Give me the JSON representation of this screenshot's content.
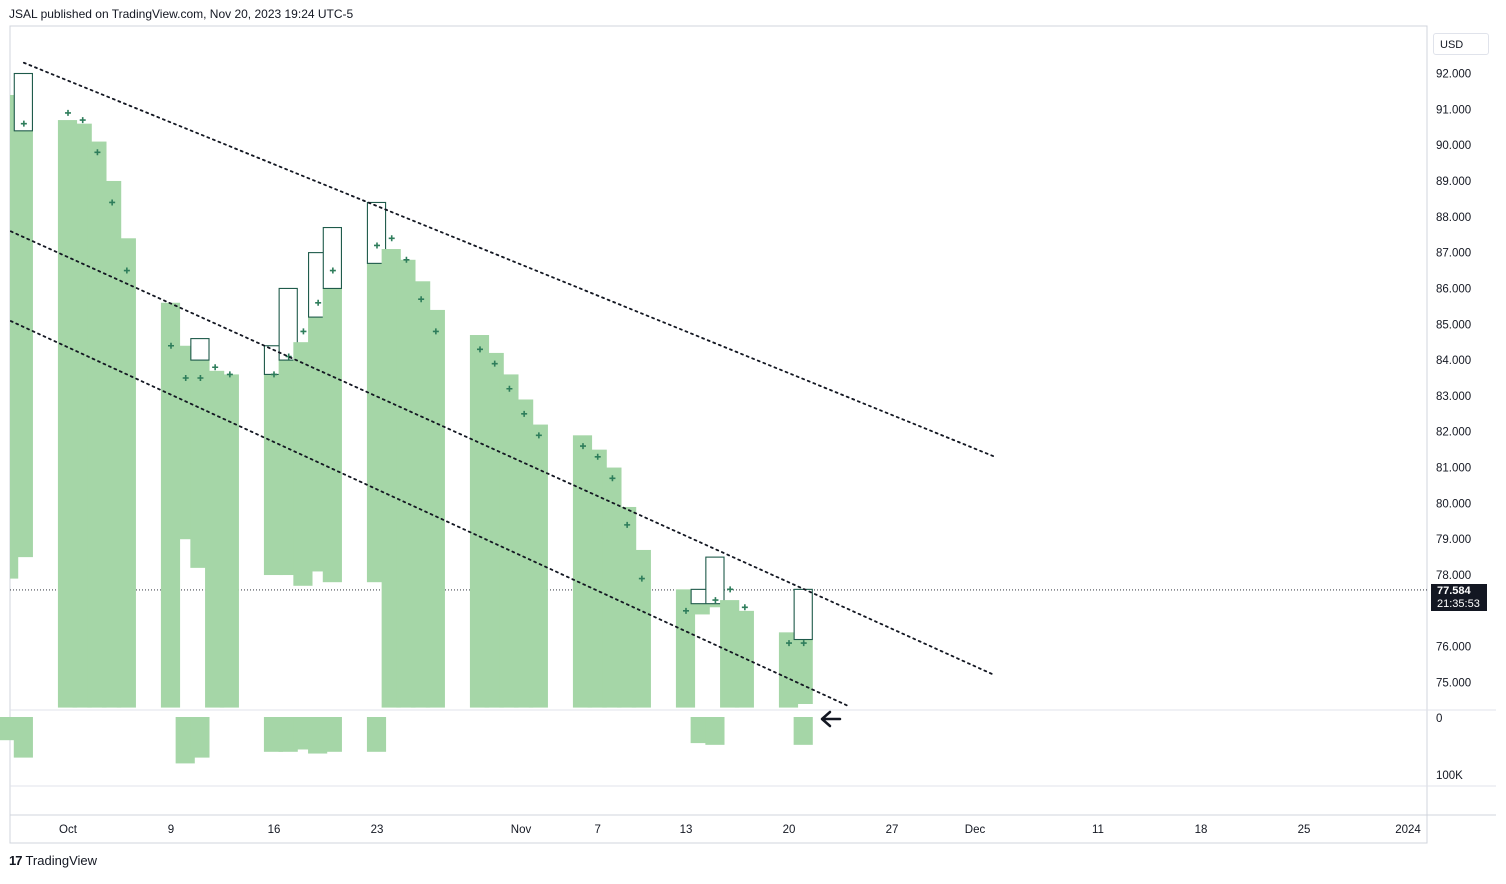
{
  "header": {
    "publisher_text": "JSAL published on TradingView.com, Nov 20, 2023 19:24 UTC-5"
  },
  "footer": {
    "brand": "TradingView",
    "logo_icon": "tradingview-logo-icon"
  },
  "price_axis": {
    "currency": "USD",
    "labels": [
      "92.000",
      "91.000",
      "90.000",
      "89.000",
      "88.000",
      "87.000",
      "86.000",
      "85.000",
      "84.000",
      "83.000",
      "82.000",
      "81.000",
      "80.000",
      "79.000",
      "78.000",
      "76.000",
      "75.000"
    ],
    "last_price": "77.584",
    "countdown": "21:35:53",
    "volume_labels": [
      "0",
      "100K"
    ]
  },
  "colors": {
    "body_fill": "#a5d6a7",
    "candle_outline": "#1e5a4a",
    "marker": "#2e7d5b",
    "trendline": "#131722",
    "grid": "#e0e3eb"
  },
  "chart_data": {
    "type": "bar",
    "x_ticks": [
      "Oct",
      "9",
      "16",
      "23",
      "Nov",
      "7",
      "13",
      "20",
      "27",
      "Dec",
      "11",
      "18",
      "25",
      "2024"
    ],
    "y_range": [
      74.3,
      92.9
    ],
    "bars": [
      {
        "date": "2023-09-28",
        "low": 77.9,
        "high": 91.4,
        "oc_low": null,
        "oc_high": null,
        "marker": null
      },
      {
        "date": "2023-09-29",
        "low": 78.5,
        "high": 90.4,
        "oc_low": 90.4,
        "oc_high": 92.0,
        "marker": 90.6
      },
      {
        "date": "2023-10-02",
        "low": 74.3,
        "high": 90.7,
        "oc_low": null,
        "oc_high": null,
        "marker": 90.9
      },
      {
        "date": "2023-10-03",
        "low": 74.3,
        "high": 90.6,
        "oc_low": null,
        "oc_high": null,
        "marker": 90.7
      },
      {
        "date": "2023-10-04",
        "low": 74.3,
        "high": 90.1,
        "oc_low": null,
        "oc_high": null,
        "marker": 89.8
      },
      {
        "date": "2023-10-05",
        "low": 74.3,
        "high": 89.0,
        "oc_low": null,
        "oc_high": null,
        "marker": 88.4
      },
      {
        "date": "2023-10-06",
        "low": 74.3,
        "high": 87.4,
        "oc_low": null,
        "oc_high": null,
        "marker": 86.5
      },
      {
        "date": "2023-10-09",
        "low": 74.3,
        "high": 85.6,
        "oc_low": null,
        "oc_high": null,
        "marker": 84.4
      },
      {
        "date": "2023-10-10",
        "low": 79.0,
        "high": 84.4,
        "oc_low": null,
        "oc_high": null,
        "marker": 83.5
      },
      {
        "date": "2023-10-11",
        "low": 78.2,
        "high": 84.0,
        "oc_low": 84.0,
        "oc_high": 84.6,
        "marker": 83.5
      },
      {
        "date": "2023-10-12",
        "low": 74.3,
        "high": 83.7,
        "oc_low": null,
        "oc_high": null,
        "marker": 83.8
      },
      {
        "date": "2023-10-13",
        "low": 74.3,
        "high": 83.6,
        "oc_low": null,
        "oc_high": null,
        "marker": 83.6
      },
      {
        "date": "2023-10-16",
        "low": 78.0,
        "high": 83.6,
        "oc_low": 83.6,
        "oc_high": 84.4,
        "marker": 83.6
      },
      {
        "date": "2023-10-17",
        "low": 78.0,
        "high": 84.0,
        "oc_low": 84.0,
        "oc_high": 86.0,
        "marker": 84.1
      },
      {
        "date": "2023-10-18",
        "low": 77.7,
        "high": 84.5,
        "oc_low": null,
        "oc_high": null,
        "marker": 84.8
      },
      {
        "date": "2023-10-19",
        "low": 78.1,
        "high": 85.2,
        "oc_low": 85.2,
        "oc_high": 87.0,
        "marker": 85.6
      },
      {
        "date": "2023-10-20",
        "low": 77.8,
        "high": 86.0,
        "oc_low": 86.0,
        "oc_high": 87.7,
        "marker": 86.5
      },
      {
        "date": "2023-10-23",
        "low": 77.8,
        "high": 86.7,
        "oc_low": 86.7,
        "oc_high": 88.4,
        "marker": 87.2
      },
      {
        "date": "2023-10-24",
        "low": 74.3,
        "high": 87.1,
        "oc_low": null,
        "oc_high": null,
        "marker": 87.4
      },
      {
        "date": "2023-10-25",
        "low": 74.3,
        "high": 86.8,
        "oc_low": null,
        "oc_high": null,
        "marker": 86.8
      },
      {
        "date": "2023-10-26",
        "low": 74.3,
        "high": 86.2,
        "oc_low": null,
        "oc_high": null,
        "marker": 85.7
      },
      {
        "date": "2023-10-27",
        "low": 74.3,
        "high": 85.4,
        "oc_low": null,
        "oc_high": null,
        "marker": 84.8
      },
      {
        "date": "2023-10-30",
        "low": 74.3,
        "high": 84.7,
        "oc_low": null,
        "oc_high": null,
        "marker": 84.3
      },
      {
        "date": "2023-10-31",
        "low": 74.3,
        "high": 84.2,
        "oc_low": null,
        "oc_high": null,
        "marker": 83.9
      },
      {
        "date": "2023-11-01",
        "low": 74.3,
        "high": 83.6,
        "oc_low": null,
        "oc_high": null,
        "marker": 83.2
      },
      {
        "date": "2023-11-02",
        "low": 74.3,
        "high": 82.9,
        "oc_low": null,
        "oc_high": null,
        "marker": 82.5
      },
      {
        "date": "2023-11-03",
        "low": 74.3,
        "high": 82.2,
        "oc_low": null,
        "oc_high": null,
        "marker": 81.9
      },
      {
        "date": "2023-11-06",
        "low": 74.3,
        "high": 81.9,
        "oc_low": null,
        "oc_high": null,
        "marker": 81.6
      },
      {
        "date": "2023-11-07",
        "low": 74.3,
        "high": 81.5,
        "oc_low": null,
        "oc_high": null,
        "marker": 81.3
      },
      {
        "date": "2023-11-08",
        "low": 74.3,
        "high": 81.0,
        "oc_low": null,
        "oc_high": null,
        "marker": 80.7
      },
      {
        "date": "2023-11-09",
        "low": 74.3,
        "high": 79.9,
        "oc_low": null,
        "oc_high": null,
        "marker": 79.4
      },
      {
        "date": "2023-11-10",
        "low": 74.3,
        "high": 78.7,
        "oc_low": null,
        "oc_high": null,
        "marker": 77.9
      },
      {
        "date": "2023-11-13",
        "low": 74.3,
        "high": 77.6,
        "oc_low": null,
        "oc_high": null,
        "marker": 77.0
      },
      {
        "date": "2023-11-14",
        "low": 76.9,
        "high": 77.2,
        "oc_low": 77.2,
        "oc_high": 77.6,
        "marker": null
      },
      {
        "date": "2023-11-15",
        "low": 77.1,
        "high": 77.2,
        "oc_low": 77.2,
        "oc_high": 78.5,
        "marker": 77.3
      },
      {
        "date": "2023-11-16",
        "low": 74.3,
        "high": 77.3,
        "oc_low": null,
        "oc_high": null,
        "marker": 77.6
      },
      {
        "date": "2023-11-17",
        "low": 74.3,
        "high": 77.0,
        "oc_low": null,
        "oc_high": null,
        "marker": 77.1
      },
      {
        "date": "2023-11-20",
        "low": 74.3,
        "high": 76.4,
        "oc_low": null,
        "oc_high": null,
        "marker": 76.1
      },
      {
        "date": "2023-11-21",
        "low": 74.4,
        "high": 76.2,
        "oc_low": 76.2,
        "oc_high": 77.6,
        "marker": 76.1
      }
    ],
    "volume": [
      {
        "date": "2023-09-28",
        "value": 40000
      },
      {
        "date": "2023-09-29",
        "value": 70000
      },
      {
        "date": "2023-10-10",
        "value": 80000
      },
      {
        "date": "2023-10-11",
        "value": 70000
      },
      {
        "date": "2023-10-16",
        "value": 60000
      },
      {
        "date": "2023-10-17",
        "value": 60000
      },
      {
        "date": "2023-10-18",
        "value": 56000
      },
      {
        "date": "2023-10-19",
        "value": 63000
      },
      {
        "date": "2023-10-20",
        "value": 60000
      },
      {
        "date": "2023-10-23",
        "value": 60000
      },
      {
        "date": "2023-11-14",
        "value": 45000
      },
      {
        "date": "2023-11-15",
        "value": 48000
      },
      {
        "date": "2023-11-21",
        "value": 48000
      }
    ],
    "trendlines": [
      {
        "start": [
          "2023-09-29",
          92.3
        ],
        "end": [
          "2023-12-04",
          81.3
        ]
      },
      {
        "start": [
          "2023-09-27",
          87.8
        ],
        "end": [
          "2023-12-04",
          75.2
        ]
      },
      {
        "start": [
          "2023-09-27",
          85.3
        ],
        "end": [
          "2023-11-24",
          74.35
        ]
      }
    ],
    "last_price_line": 77.584
  }
}
